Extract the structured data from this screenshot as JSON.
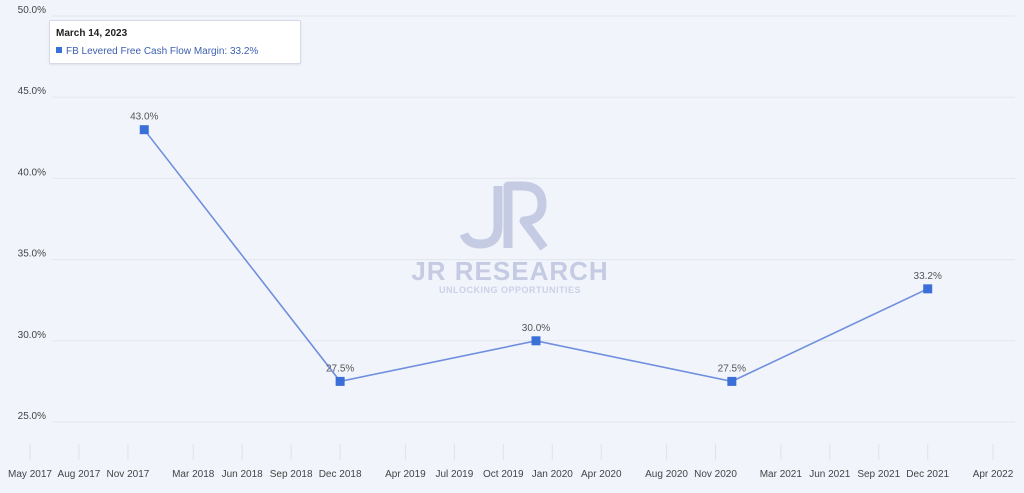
{
  "legend": {
    "date": "March 14, 2023",
    "series_label": "FB Levered Free Cash Flow Margin: 33.2%"
  },
  "watermark": {
    "title": "JR RESEARCH",
    "subtitle": "UNLOCKING OPPORTUNITIES",
    "logo": "JR"
  },
  "colors": {
    "background": "#f2f4fb",
    "line": "#6f8fdd",
    "marker": "#3a6fd8",
    "grid": "#e3e6ef",
    "axis_text": "#444444",
    "watermark": "#c4cbe3"
  },
  "chart_data": {
    "type": "line",
    "title": "",
    "xlabel": "",
    "ylabel": "",
    "ylim": [
      25,
      50
    ],
    "y_ticks": [
      25,
      30,
      35,
      40,
      45,
      50
    ],
    "y_tick_labels": [
      "25.0%",
      "30.0%",
      "35.0%",
      "40.0%",
      "45.0%",
      "50.0%"
    ],
    "x_tick_labels": [
      "May 2017",
      "Aug 2017",
      "Nov 2017",
      "Mar 2018",
      "Jun 2018",
      "Sep 2018",
      "Dec 2018",
      "Apr 2019",
      "Jul 2019",
      "Oct 2019",
      "Jan 2020",
      "Apr 2020",
      "Aug 2020",
      "Nov 2020",
      "Mar 2021",
      "Jun 2021",
      "Sep 2021",
      "Dec 2021",
      "Apr 2022"
    ],
    "grid": true,
    "series": [
      {
        "name": "FB Levered Free Cash Flow Margin",
        "points": [
          {
            "x": "Dec 2017",
            "y": 43.0,
            "label": "43.0%"
          },
          {
            "x": "Dec 2018",
            "y": 27.5,
            "label": "27.5%"
          },
          {
            "x": "Dec 2019",
            "y": 30.0,
            "label": "30.0%"
          },
          {
            "x": "Dec 2020",
            "y": 27.5,
            "label": "27.5%"
          },
          {
            "x": "Dec 2021",
            "y": 33.2,
            "label": "33.2%"
          }
        ]
      }
    ]
  }
}
